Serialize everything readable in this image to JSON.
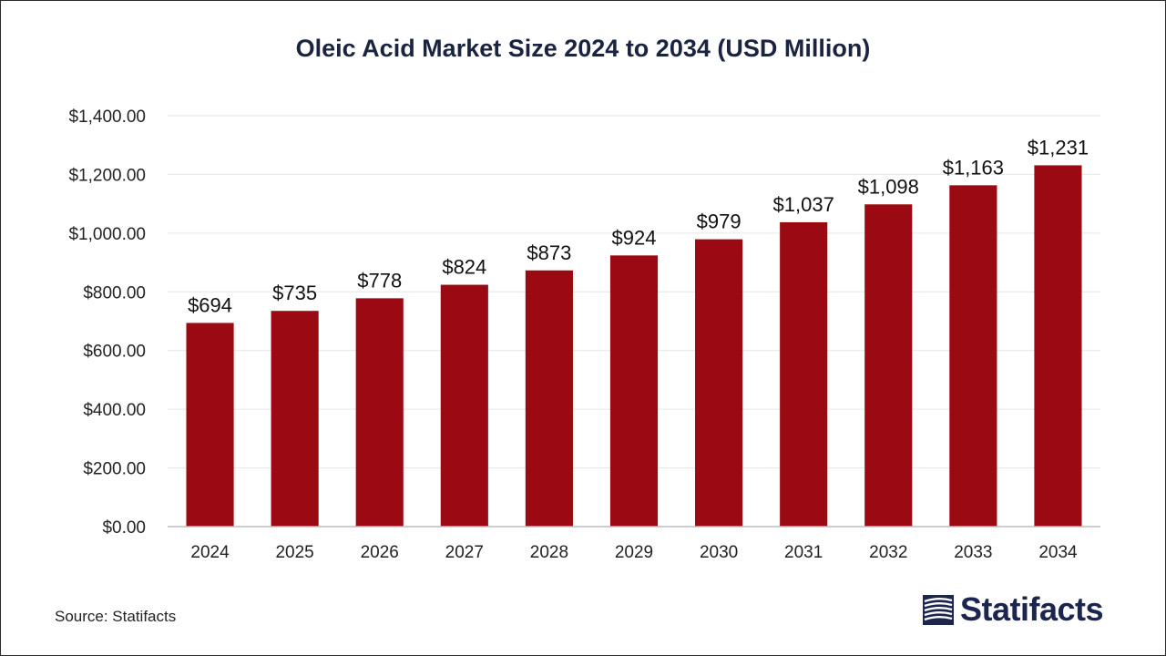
{
  "chart_data": {
    "type": "bar",
    "title": "Oleic Acid Market Size 2024 to 2034 (USD Million)",
    "categories": [
      "2024",
      "2025",
      "2026",
      "2027",
      "2028",
      "2029",
      "2030",
      "2031",
      "2032",
      "2033",
      "2034"
    ],
    "values": [
      694,
      735,
      778,
      824,
      873,
      924,
      979,
      1037,
      1098,
      1163,
      1231
    ],
    "data_labels": [
      "$694",
      "$735",
      "$778",
      "$824",
      "$873",
      "$924",
      "$979",
      "$1,037",
      "$1,098",
      "$1,163",
      "$1,231"
    ],
    "yticks": [
      0,
      200,
      400,
      600,
      800,
      1000,
      1200,
      1400
    ],
    "ytick_labels": [
      "$0.00",
      "$200.00",
      "$400.00",
      "$600.00",
      "$800.00",
      "$1,000.00",
      "$1,200.00",
      "$1,400.00"
    ],
    "ylim": [
      0,
      1400
    ],
    "xlabel": "",
    "ylabel": "",
    "grid": true,
    "bar_color": "#9b0a12"
  },
  "footer": {
    "source": "Source: Statifacts",
    "brand": "Statifacts"
  },
  "colors": {
    "title": "#1a2340",
    "brand": "#1b2550",
    "grid": "#e6e6e6",
    "axis": "#bdbdbd"
  },
  "icons": {
    "brand_logo": "statifacts-logo-icon"
  }
}
